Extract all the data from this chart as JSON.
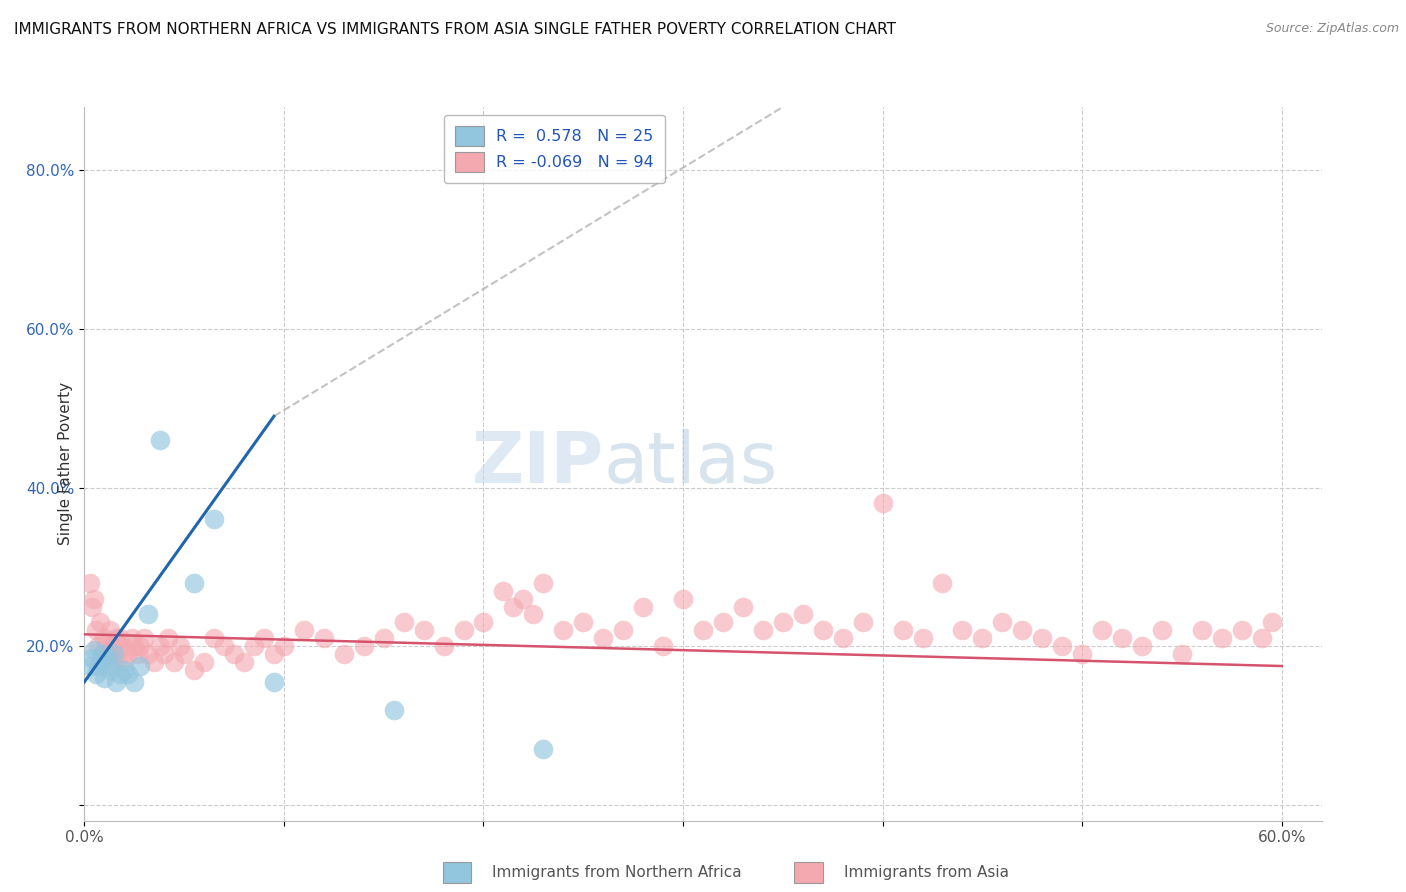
{
  "title": "IMMIGRANTS FROM NORTHERN AFRICA VS IMMIGRANTS FROM ASIA SINGLE FATHER POVERTY CORRELATION CHART",
  "source": "Source: ZipAtlas.com",
  "ylabel": "Single Father Poverty",
  "xlim": [
    0.0,
    0.62
  ],
  "ylim": [
    -0.02,
    0.88
  ],
  "x_tick_pos": [
    0.0,
    0.1,
    0.2,
    0.3,
    0.4,
    0.5,
    0.6
  ],
  "x_tick_labels": [
    "0.0%",
    "",
    "",
    "",
    "",
    "",
    "60.0%"
  ],
  "y_tick_pos": [
    0.0,
    0.2,
    0.4,
    0.6,
    0.8
  ],
  "y_tick_labels_right": [
    "",
    "20.0%",
    "40.0%",
    "60.0%",
    "80.0%"
  ],
  "legend1_label": "Immigrants from Northern Africa",
  "legend2_label": "Immigrants from Asia",
  "R1": 0.578,
  "N1": 25,
  "R2": -0.069,
  "N2": 94,
  "blue_color": "#92c5de",
  "pink_color": "#f4a8b0",
  "line_blue": "#2166ac",
  "line_pink": "#d6536d",
  "blue_scatter_x": [
    0.003,
    0.004,
    0.005,
    0.006,
    0.007,
    0.008,
    0.009,
    0.01,
    0.011,
    0.012,
    0.013,
    0.015,
    0.016,
    0.018,
    0.02,
    0.022,
    0.025,
    0.028,
    0.032,
    0.038,
    0.055,
    0.065,
    0.095,
    0.155,
    0.23
  ],
  "blue_scatter_y": [
    0.175,
    0.185,
    0.195,
    0.165,
    0.175,
    0.18,
    0.19,
    0.16,
    0.175,
    0.185,
    0.17,
    0.19,
    0.155,
    0.165,
    0.17,
    0.165,
    0.155,
    0.175,
    0.24,
    0.46,
    0.28,
    0.36,
    0.155,
    0.12,
    0.07
  ],
  "pink_scatter_x": [
    0.003,
    0.004,
    0.005,
    0.006,
    0.007,
    0.008,
    0.009,
    0.01,
    0.011,
    0.012,
    0.013,
    0.014,
    0.015,
    0.016,
    0.017,
    0.018,
    0.019,
    0.02,
    0.022,
    0.024,
    0.025,
    0.027,
    0.028,
    0.03,
    0.032,
    0.035,
    0.038,
    0.04,
    0.042,
    0.045,
    0.048,
    0.05,
    0.055,
    0.06,
    0.065,
    0.07,
    0.075,
    0.08,
    0.085,
    0.09,
    0.095,
    0.1,
    0.11,
    0.12,
    0.13,
    0.14,
    0.15,
    0.16,
    0.17,
    0.18,
    0.19,
    0.2,
    0.21,
    0.215,
    0.22,
    0.225,
    0.23,
    0.24,
    0.25,
    0.26,
    0.27,
    0.28,
    0.29,
    0.3,
    0.31,
    0.32,
    0.33,
    0.34,
    0.35,
    0.36,
    0.37,
    0.38,
    0.39,
    0.4,
    0.41,
    0.42,
    0.43,
    0.44,
    0.45,
    0.46,
    0.47,
    0.48,
    0.49,
    0.5,
    0.51,
    0.52,
    0.53,
    0.54,
    0.55,
    0.56,
    0.57,
    0.58,
    0.59,
    0.595
  ],
  "pink_scatter_y": [
    0.28,
    0.25,
    0.26,
    0.22,
    0.2,
    0.23,
    0.19,
    0.21,
    0.2,
    0.19,
    0.22,
    0.2,
    0.18,
    0.21,
    0.19,
    0.21,
    0.2,
    0.18,
    0.19,
    0.21,
    0.2,
    0.19,
    0.2,
    0.21,
    0.19,
    0.18,
    0.2,
    0.19,
    0.21,
    0.18,
    0.2,
    0.19,
    0.17,
    0.18,
    0.21,
    0.2,
    0.19,
    0.18,
    0.2,
    0.21,
    0.19,
    0.2,
    0.22,
    0.21,
    0.19,
    0.2,
    0.21,
    0.23,
    0.22,
    0.2,
    0.22,
    0.23,
    0.27,
    0.25,
    0.26,
    0.24,
    0.28,
    0.22,
    0.23,
    0.21,
    0.22,
    0.25,
    0.2,
    0.26,
    0.22,
    0.23,
    0.25,
    0.22,
    0.23,
    0.24,
    0.22,
    0.21,
    0.23,
    0.38,
    0.22,
    0.21,
    0.28,
    0.22,
    0.21,
    0.23,
    0.22,
    0.21,
    0.2,
    0.19,
    0.22,
    0.21,
    0.2,
    0.22,
    0.19,
    0.22,
    0.21,
    0.22,
    0.21,
    0.23
  ],
  "blue_line_x1": 0.0,
  "blue_line_y1": 0.155,
  "blue_line_x2": 0.095,
  "blue_line_y2": 0.49,
  "pink_line_x1": 0.0,
  "pink_line_y1": 0.215,
  "pink_line_x2": 0.6,
  "pink_line_y2": 0.175,
  "dash_line_x1": 0.095,
  "dash_line_y1": 0.49,
  "dash_line_x2": 0.35,
  "dash_line_y2": 0.88,
  "watermark_zip": "ZIP",
  "watermark_atlas": "atlas"
}
